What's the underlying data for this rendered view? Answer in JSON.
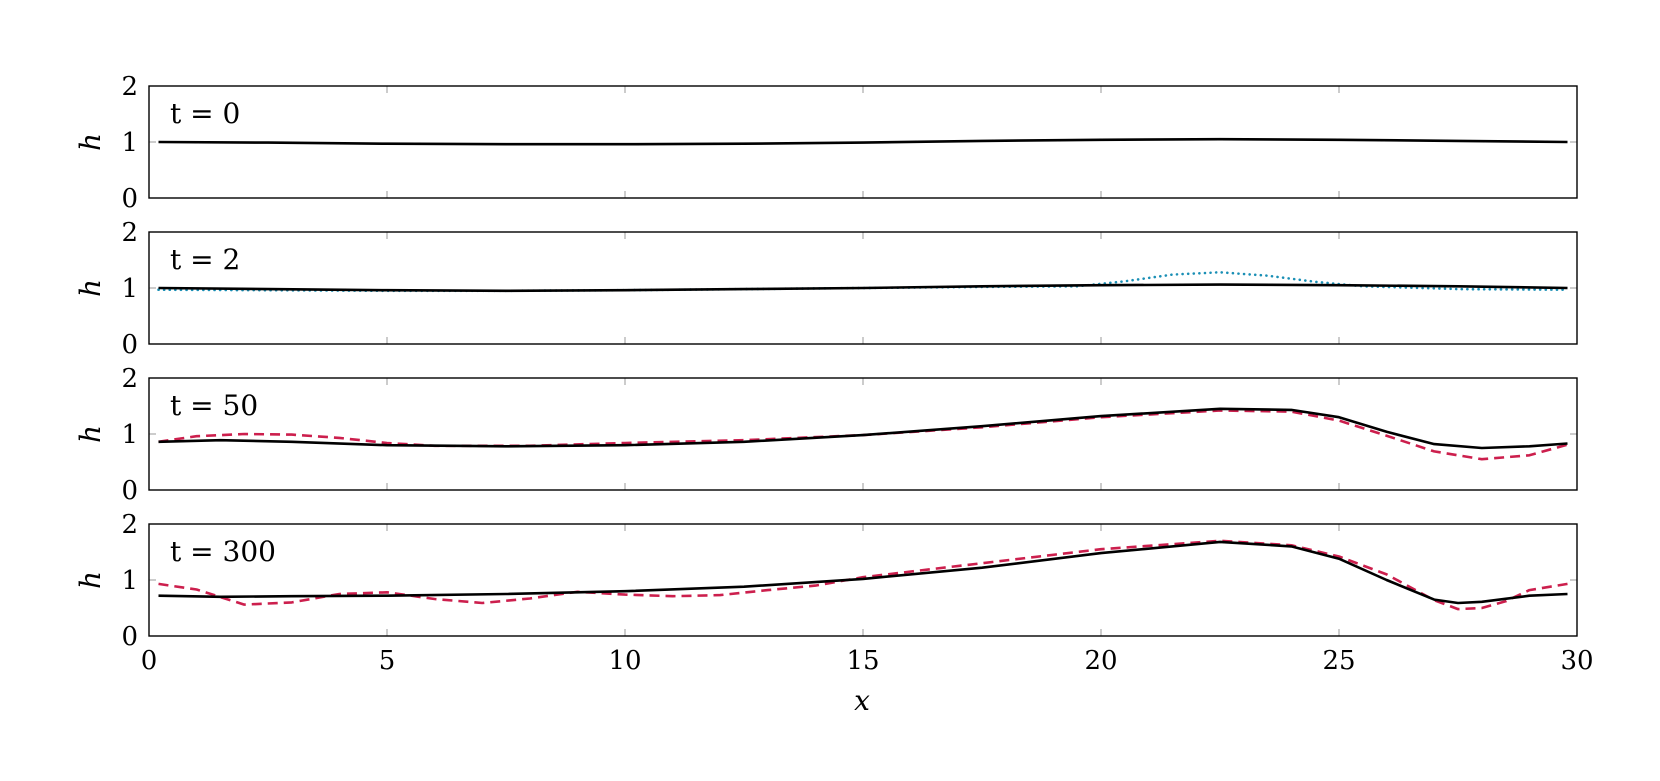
{
  "chart_data": {
    "type": "line",
    "xlabel": "x",
    "xlim": [
      0,
      30
    ],
    "x_ticks": [
      "0",
      "5",
      "10",
      "15",
      "20",
      "25",
      "30"
    ],
    "ylabel": "h",
    "ylim": [
      0,
      2
    ],
    "y_ticks": [
      "0",
      "1",
      "2"
    ],
    "colors": {
      "solid": "#000000",
      "dotted": "#1a8fb5",
      "dashed": "#cc1f4d"
    },
    "panels": [
      {
        "label": "t = 0",
        "series": [
          {
            "style": "solid",
            "color": "#000000",
            "x": [
              0.2,
              2.5,
              5,
              7.5,
              10,
              12.5,
              15,
              17.5,
              20,
              22.5,
              25,
              27.5,
              29.8
            ],
            "y": [
              1.0,
              0.99,
              0.97,
              0.96,
              0.96,
              0.97,
              0.99,
              1.02,
              1.04,
              1.05,
              1.04,
              1.02,
              1.0
            ]
          }
        ]
      },
      {
        "label": "t = 2",
        "series": [
          {
            "style": "dotted",
            "color": "#1a8fb5",
            "x": [
              0.2,
              2.5,
              5,
              7.5,
              10,
              12.5,
              15,
              17.5,
              19.5,
              20.5,
              21.5,
              22.5,
              23.5,
              24.5,
              25.5,
              27.5,
              29.8
            ],
            "y": [
              0.97,
              0.96,
              0.95,
              0.95,
              0.96,
              0.98,
              1.0,
              1.02,
              1.03,
              1.12,
              1.24,
              1.28,
              1.22,
              1.11,
              1.03,
              0.98,
              0.97
            ]
          },
          {
            "style": "solid",
            "color": "#000000",
            "x": [
              0.2,
              2.5,
              5,
              7.5,
              10,
              12.5,
              15,
              17.5,
              20,
              22.5,
              25,
              27.5,
              29.8
            ],
            "y": [
              1.0,
              0.98,
              0.96,
              0.95,
              0.96,
              0.98,
              1.0,
              1.03,
              1.05,
              1.06,
              1.05,
              1.03,
              1.0
            ]
          }
        ]
      },
      {
        "label": "t = 50",
        "series": [
          {
            "style": "dashed",
            "color": "#cc1f4d",
            "x": [
              0.2,
              1,
              2,
              3,
              4,
              5,
              6,
              8,
              10,
              12.5,
              15,
              17.5,
              20,
              22.5,
              24,
              25,
              26,
              27,
              28,
              29,
              29.8
            ],
            "y": [
              0.86,
              0.96,
              1.0,
              0.99,
              0.93,
              0.84,
              0.79,
              0.79,
              0.84,
              0.89,
              0.98,
              1.12,
              1.3,
              1.42,
              1.4,
              1.24,
              0.97,
              0.69,
              0.55,
              0.62,
              0.81
            ]
          },
          {
            "style": "solid",
            "color": "#000000",
            "x": [
              0.2,
              1.5,
              3,
              5,
              7.5,
              10,
              12.5,
              15,
              17.5,
              20,
              22.5,
              24,
              25,
              26,
              27,
              28,
              29,
              29.8
            ],
            "y": [
              0.86,
              0.89,
              0.86,
              0.8,
              0.78,
              0.8,
              0.86,
              0.98,
              1.14,
              1.32,
              1.45,
              1.43,
              1.3,
              1.04,
              0.82,
              0.75,
              0.78,
              0.83
            ]
          }
        ]
      },
      {
        "label": "t = 300",
        "series": [
          {
            "style": "dashed",
            "color": "#cc1f4d",
            "x": [
              0.2,
              1,
              2,
              3,
              4,
              5,
              6,
              7,
              8,
              9,
              10,
              11,
              12,
              13,
              14,
              15,
              17.5,
              20,
              22.5,
              24,
              25,
              26,
              27,
              27.5,
              28,
              28.5,
              29,
              29.8
            ],
            "y": [
              0.93,
              0.83,
              0.56,
              0.6,
              0.75,
              0.78,
              0.66,
              0.59,
              0.67,
              0.79,
              0.74,
              0.71,
              0.73,
              0.82,
              0.9,
              1.05,
              1.3,
              1.55,
              1.7,
              1.62,
              1.42,
              1.1,
              0.64,
              0.48,
              0.5,
              0.62,
              0.82,
              0.93
            ]
          },
          {
            "style": "solid",
            "color": "#000000",
            "x": [
              0.2,
              1.5,
              3,
              5,
              7.5,
              10,
              12.5,
              15,
              17.5,
              20,
              22.5,
              24,
              25,
              26,
              27,
              27.5,
              28,
              29,
              29.8
            ],
            "y": [
              0.72,
              0.7,
              0.71,
              0.72,
              0.75,
              0.8,
              0.88,
              1.02,
              1.22,
              1.48,
              1.68,
              1.6,
              1.38,
              1.0,
              0.65,
              0.59,
              0.61,
              0.72,
              0.75
            ]
          }
        ]
      }
    ]
  }
}
